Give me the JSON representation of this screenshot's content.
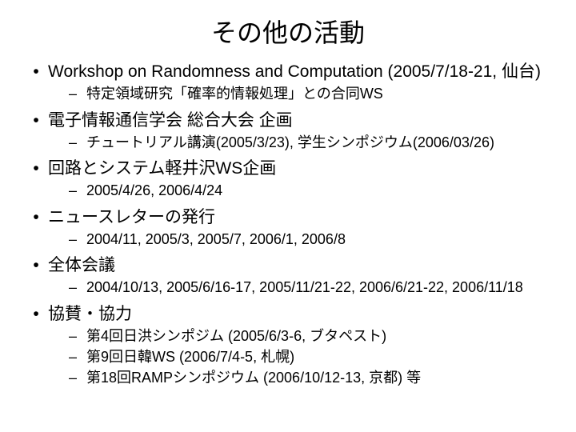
{
  "title": "その他の活動",
  "bullets": {
    "l1_symbol": "•",
    "l2_symbol": "–"
  },
  "items": [
    {
      "text": "Workshop on Randomness and Computation (2005/7/18-21, 仙台)",
      "sub": [
        "特定領域研究「確率的情報処理」との合同WS"
      ]
    },
    {
      "text": "電子情報通信学会 総合大会 企画",
      "sub": [
        "チュートリアル講演(2005/3/23), 学生シンポジウム(2006/03/26)"
      ]
    },
    {
      "text": "回路とシステム軽井沢WS企画",
      "sub": [
        "2005/4/26, 2006/4/24"
      ]
    },
    {
      "text": "ニュースレターの発行",
      "sub": [
        "2004/11, 2005/3, 2005/7, 2006/1, 2006/8"
      ]
    },
    {
      "text": "全体会議",
      "sub": [
        "2004/10/13, 2005/6/16-17, 2005/11/21-22, 2006/6/21-22, 2006/11/18"
      ]
    },
    {
      "text": "協賛・協力",
      "sub": [
        "第4回日洪シンポジム (2005/6/3-6, ブタペスト)",
        "第9回日韓WS (2006/7/4-5, 札幌)",
        "第18回RAMPシンポジウム (2006/10/12-13, 京都)  等"
      ]
    }
  ]
}
